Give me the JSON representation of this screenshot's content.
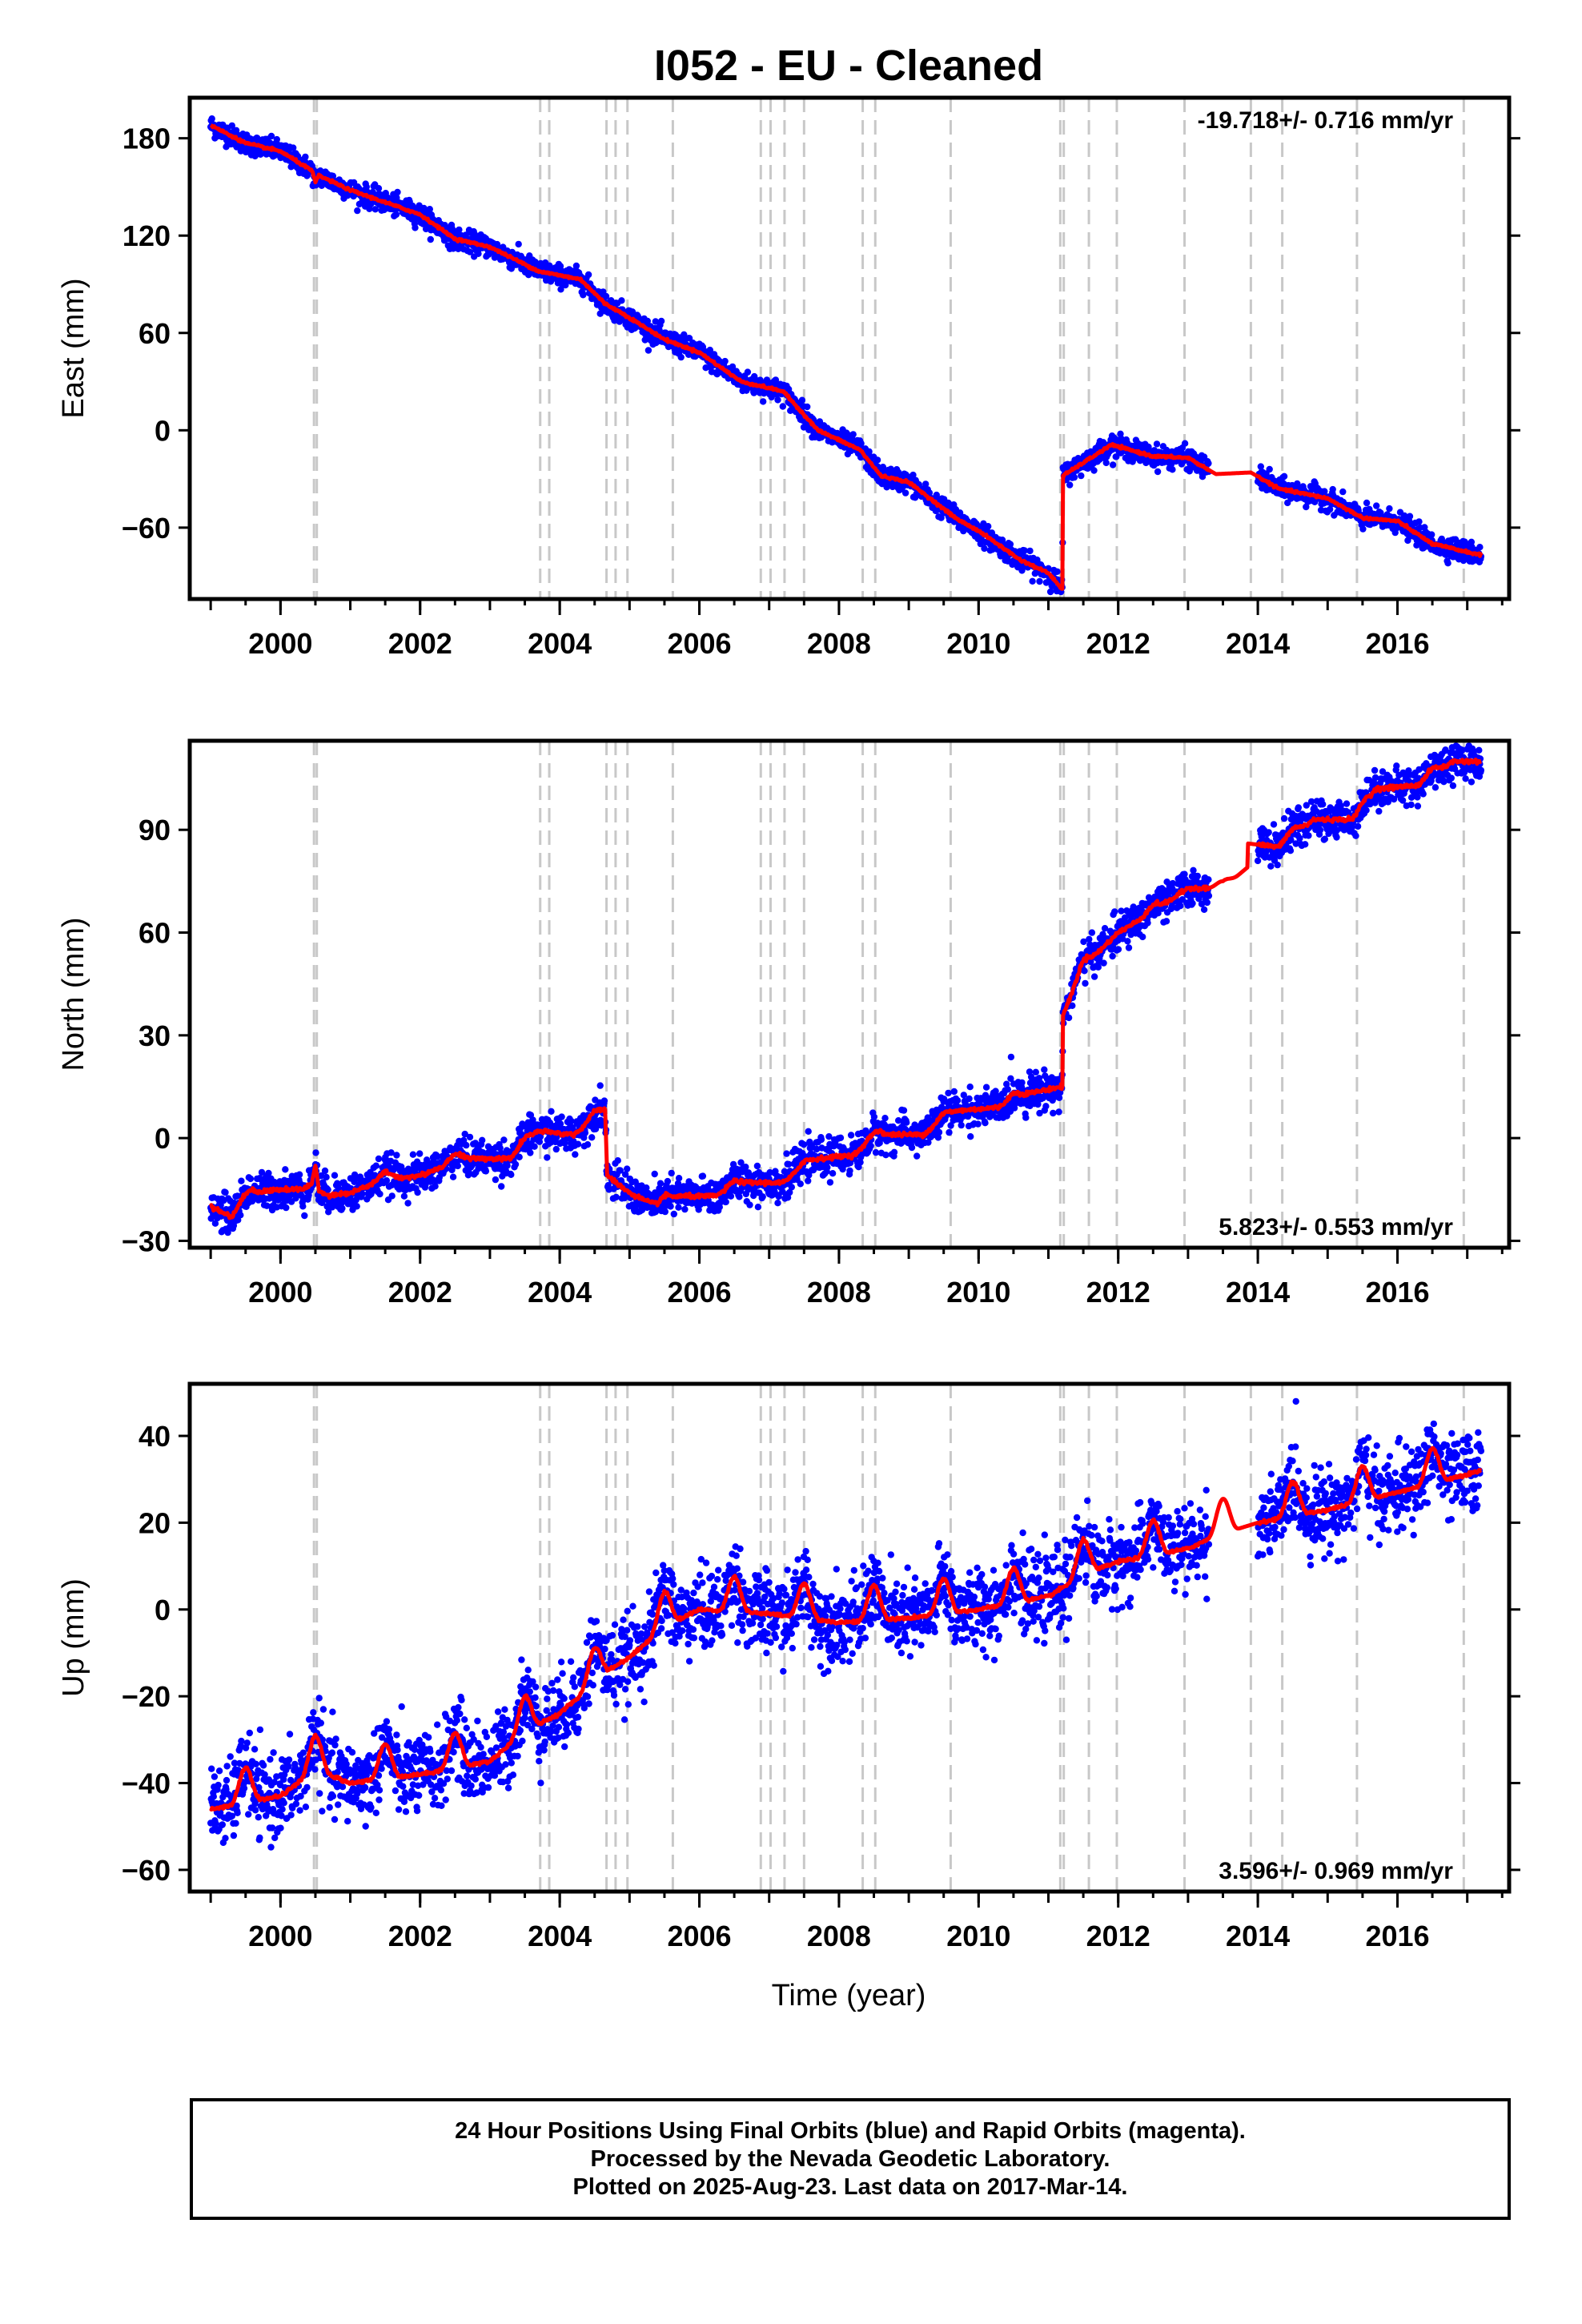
{
  "title": "I052  - EU - Cleaned",
  "xlabel": "Time (year)",
  "footer": {
    "line1": "24 Hour Positions Using Final Orbits (blue) and Rapid Orbits (magenta).",
    "line2": "Processed by the Nevada Geodetic Laboratory.",
    "line3": "Plotted on 2025-Aug-23. Last data on 2017-Mar-14."
  },
  "colors": {
    "data_points": "#0000ff",
    "model": "#ff0000",
    "event_lines": "#c8c8c8"
  },
  "chart_data": [
    {
      "type": "scatter",
      "component": "east",
      "ylabel": "East (mm)",
      "rate_text": "-19.718+/- 0.716 mm/yr",
      "rate_position": "top-right",
      "xlim": [
        1998.7,
        2017.6
      ],
      "ylim": [
        -104,
        205
      ],
      "yticks": [
        180,
        120,
        60,
        0,
        -60
      ],
      "xticks": [
        2000,
        2002,
        2004,
        2006,
        2008,
        2010,
        2012,
        2014,
        2016
      ],
      "events": [
        2000.48,
        2000.52,
        2003.72,
        2003.85,
        2004.67,
        2004.8,
        2004.97,
        2005.62,
        2006.88,
        2007.02,
        2007.22,
        2007.5,
        2008.34,
        2008.52,
        2009.6,
        2011.17,
        2011.22,
        2011.58,
        2011.98,
        2012.95,
        2013.9,
        2014.35,
        2015.42,
        2016.95
      ],
      "model_noise_mm": 1.2,
      "point_noise_mm": 3.2,
      "seasonal_mm": 0,
      "model": [
        {
          "x": 1999.0,
          "y": 188
        },
        {
          "x": 1999.5,
          "y": 177
        },
        {
          "x": 2000.0,
          "y": 172
        },
        {
          "x": 2000.45,
          "y": 160
        },
        {
          "x": 2000.5,
          "y": 153
        },
        {
          "x": 2000.55,
          "y": 157
        },
        {
          "x": 2001.0,
          "y": 148
        },
        {
          "x": 2002.0,
          "y": 133
        },
        {
          "x": 2002.5,
          "y": 118
        },
        {
          "x": 2003.0,
          "y": 113
        },
        {
          "x": 2003.7,
          "y": 98
        },
        {
          "x": 2004.3,
          "y": 93
        },
        {
          "x": 2004.65,
          "y": 78
        },
        {
          "x": 2004.9,
          "y": 72
        },
        {
          "x": 2005.5,
          "y": 56
        },
        {
          "x": 2006.0,
          "y": 48
        },
        {
          "x": 2006.6,
          "y": 30
        },
        {
          "x": 2007.2,
          "y": 24
        },
        {
          "x": 2007.7,
          "y": 0
        },
        {
          "x": 2008.3,
          "y": -12
        },
        {
          "x": 2008.6,
          "y": -28
        },
        {
          "x": 2009.0,
          "y": -32
        },
        {
          "x": 2009.7,
          "y": -55
        },
        {
          "x": 2010.0,
          "y": -62
        },
        {
          "x": 2010.6,
          "y": -80
        },
        {
          "x": 2011.0,
          "y": -88
        },
        {
          "x": 2011.2,
          "y": -98
        },
        {
          "x": 2011.21,
          "y": -28
        },
        {
          "x": 2011.5,
          "y": -20
        },
        {
          "x": 2011.9,
          "y": -9
        },
        {
          "x": 2012.5,
          "y": -16
        },
        {
          "x": 2013.0,
          "y": -17
        },
        {
          "x": 2013.4,
          "y": -27
        },
        {
          "x": 2013.9,
          "y": -26
        },
        {
          "x": 2014.3,
          "y": -36
        },
        {
          "x": 2015.0,
          "y": -42
        },
        {
          "x": 2015.5,
          "y": -54
        },
        {
          "x": 2016.0,
          "y": -56
        },
        {
          "x": 2016.5,
          "y": -70
        },
        {
          "x": 2017.2,
          "y": -77
        }
      ],
      "gaps": [
        [
          2013.3,
          2014.0
        ]
      ]
    },
    {
      "type": "scatter",
      "component": "north",
      "ylabel": "North (mm)",
      "rate_text": "5.823+/- 0.553 mm/yr",
      "rate_position": "bottom-right",
      "xlim": [
        1998.7,
        2017.6
      ],
      "ylim": [
        -32,
        116
      ],
      "yticks": [
        90,
        60,
        30,
        0,
        -30
      ],
      "xticks": [
        2000,
        2002,
        2004,
        2006,
        2008,
        2010,
        2012,
        2014,
        2016
      ],
      "events": [
        2000.48,
        2000.52,
        2003.72,
        2003.85,
        2004.67,
        2004.8,
        2004.97,
        2005.62,
        2006.88,
        2007.02,
        2007.22,
        2007.5,
        2008.34,
        2008.52,
        2009.6,
        2011.17,
        2011.22,
        2011.58,
        2011.98,
        2012.95,
        2013.9,
        2014.35,
        2015.42,
        2016.95
      ],
      "model_noise_mm": 1.0,
      "point_noise_mm": 2.6,
      "seasonal_mm": 2.0,
      "model": [
        {
          "x": 1999.0,
          "y": -20
        },
        {
          "x": 1999.3,
          "y": -23
        },
        {
          "x": 1999.6,
          "y": -16
        },
        {
          "x": 2000.0,
          "y": -15
        },
        {
          "x": 2000.45,
          "y": -15
        },
        {
          "x": 2000.5,
          "y": -10
        },
        {
          "x": 2000.55,
          "y": -17
        },
        {
          "x": 2001.0,
          "y": -16
        },
        {
          "x": 2001.5,
          "y": -12
        },
        {
          "x": 2002.0,
          "y": -11
        },
        {
          "x": 2002.6,
          "y": -6
        },
        {
          "x": 2003.3,
          "y": -6
        },
        {
          "x": 2003.7,
          "y": 2
        },
        {
          "x": 2004.2,
          "y": 1
        },
        {
          "x": 2004.65,
          "y": 8
        },
        {
          "x": 2004.68,
          "y": -11
        },
        {
          "x": 2005.0,
          "y": -16
        },
        {
          "x": 2005.4,
          "y": -20
        },
        {
          "x": 2005.7,
          "y": -17
        },
        {
          "x": 2006.2,
          "y": -17
        },
        {
          "x": 2006.7,
          "y": -13
        },
        {
          "x": 2007.2,
          "y": -13
        },
        {
          "x": 2007.7,
          "y": -6
        },
        {
          "x": 2008.2,
          "y": -5
        },
        {
          "x": 2008.6,
          "y": 1
        },
        {
          "x": 2009.2,
          "y": 1
        },
        {
          "x": 2009.7,
          "y": 8
        },
        {
          "x": 2010.3,
          "y": 9
        },
        {
          "x": 2010.7,
          "y": 13
        },
        {
          "x": 2011.2,
          "y": 15
        },
        {
          "x": 2011.21,
          "y": 36
        },
        {
          "x": 2011.5,
          "y": 50
        },
        {
          "x": 2012.0,
          "y": 60
        },
        {
          "x": 2012.5,
          "y": 66
        },
        {
          "x": 2013.0,
          "y": 73
        },
        {
          "x": 2013.5,
          "y": 73
        },
        {
          "x": 2013.85,
          "y": 79
        },
        {
          "x": 2013.86,
          "y": 86
        },
        {
          "x": 2014.3,
          "y": 85
        },
        {
          "x": 2014.8,
          "y": 93
        },
        {
          "x": 2015.4,
          "y": 93
        },
        {
          "x": 2015.7,
          "y": 102
        },
        {
          "x": 2016.3,
          "y": 103
        },
        {
          "x": 2016.8,
          "y": 110
        },
        {
          "x": 2017.2,
          "y": 110
        }
      ],
      "gaps": [
        [
          2013.3,
          2014.0
        ]
      ]
    },
    {
      "type": "scatter",
      "component": "up",
      "ylabel": "Up (mm)",
      "rate_text": "3.596+/- 0.969 mm/yr",
      "rate_position": "bottom-right",
      "xlim": [
        1998.7,
        2017.6
      ],
      "ylim": [
        -65,
        52
      ],
      "yticks": [
        40,
        20,
        0,
        -20,
        -40,
        -60
      ],
      "xticks": [
        2000,
        2002,
        2004,
        2006,
        2008,
        2010,
        2012,
        2014,
        2016
      ],
      "events": [
        2000.48,
        2000.52,
        2003.72,
        2003.85,
        2004.67,
        2004.8,
        2004.97,
        2005.62,
        2006.88,
        2007.02,
        2007.22,
        2007.5,
        2008.34,
        2008.52,
        2009.6,
        2011.17,
        2011.22,
        2011.58,
        2011.98,
        2012.95,
        2013.9,
        2014.35,
        2015.42,
        2016.95
      ],
      "model_noise_mm": 0.6,
      "point_noise_mm": 4.5,
      "seasonal_mm": 8.0,
      "model": [
        {
          "x": 1999.0,
          "y": -46
        },
        {
          "x": 2000.0,
          "y": -43
        },
        {
          "x": 2000.5,
          "y": -37
        },
        {
          "x": 2001.0,
          "y": -40
        },
        {
          "x": 2002.0,
          "y": -38
        },
        {
          "x": 2003.0,
          "y": -35
        },
        {
          "x": 2003.5,
          "y": -28
        },
        {
          "x": 2004.0,
          "y": -24
        },
        {
          "x": 2004.7,
          "y": -14
        },
        {
          "x": 2005.0,
          "y": -11
        },
        {
          "x": 2005.5,
          "y": -4
        },
        {
          "x": 2006.0,
          "y": 0
        },
        {
          "x": 2007.0,
          "y": -1
        },
        {
          "x": 2008.0,
          "y": -3
        },
        {
          "x": 2009.0,
          "y": -2
        },
        {
          "x": 2010.0,
          "y": 0
        },
        {
          "x": 2011.0,
          "y": 3
        },
        {
          "x": 2011.5,
          "y": 8
        },
        {
          "x": 2012.0,
          "y": 11
        },
        {
          "x": 2013.0,
          "y": 14
        },
        {
          "x": 2013.4,
          "y": 17
        },
        {
          "x": 2014.0,
          "y": 20
        },
        {
          "x": 2015.0,
          "y": 23
        },
        {
          "x": 2016.0,
          "y": 27
        },
        {
          "x": 2017.2,
          "y": 32
        }
      ],
      "gaps": [
        [
          2013.3,
          2014.0
        ]
      ]
    }
  ]
}
